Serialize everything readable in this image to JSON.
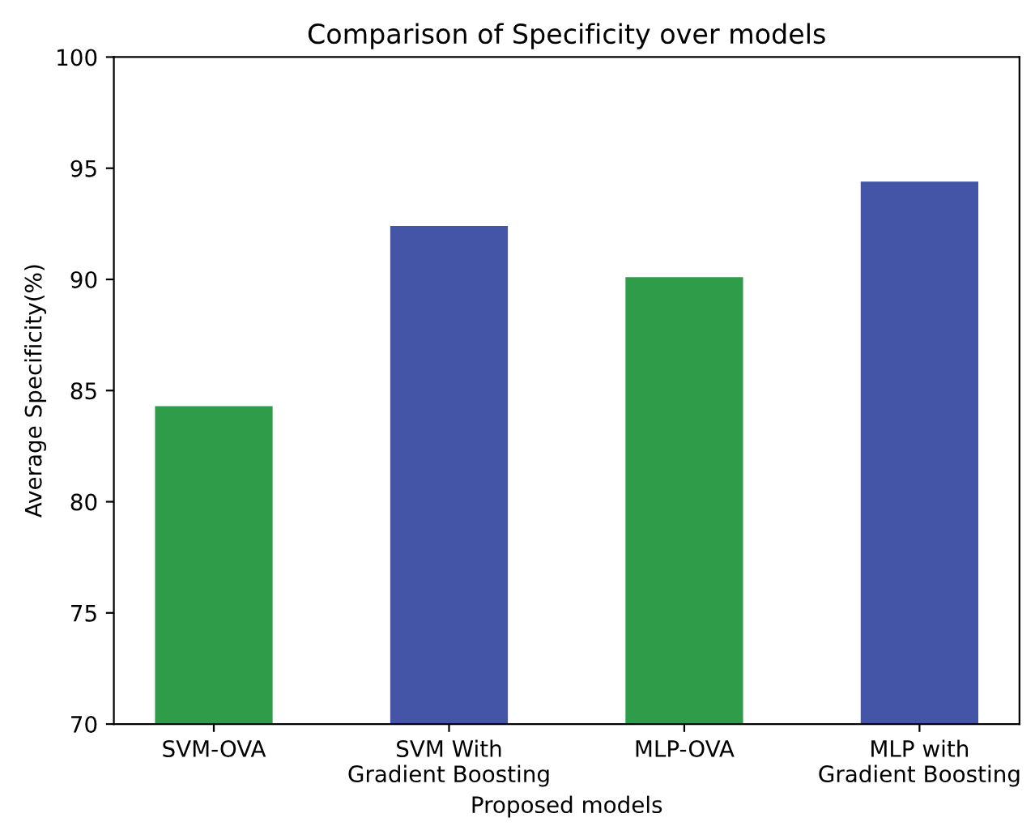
{
  "chart_data": {
    "type": "bar",
    "title": "Comparison of Specificity over models",
    "xlabel": "Proposed models",
    "ylabel": "Average Specificity(%)",
    "categories": [
      "SVM-OVA",
      "SVM With\nGradient Boosting",
      "MLP-OVA",
      "MLP with\nGradient Boosting"
    ],
    "values": [
      84.3,
      92.4,
      90.1,
      94.4
    ],
    "colors": [
      "#2e9c48",
      "#4454a6",
      "#2e9c48",
      "#4454a6"
    ],
    "ylim": [
      70,
      100
    ],
    "yticks": [
      70,
      75,
      80,
      85,
      90,
      95,
      100
    ],
    "grid": false,
    "legend": false
  }
}
